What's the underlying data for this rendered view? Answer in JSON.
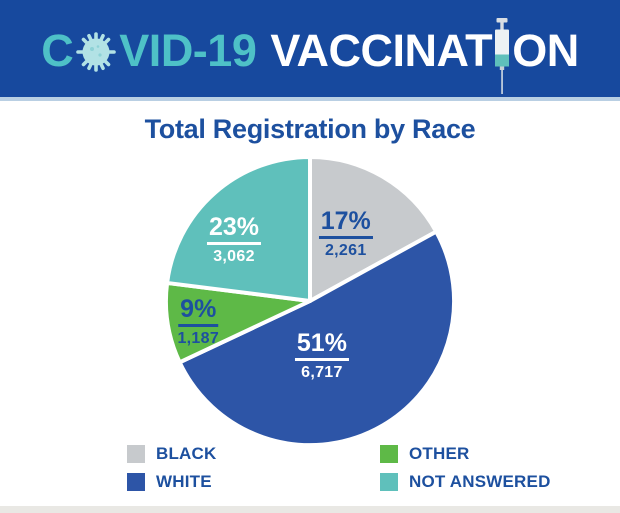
{
  "header": {
    "covid_pre": "C",
    "covid_post": "VID-19",
    "vax_pre": "VACCINAT",
    "vax_post": "ON",
    "banner_bg": "#17499e",
    "banner_strip": "#b9cfe3",
    "covid_text_color": "#4ec1c7",
    "vaccination_text_color": "#ffffff"
  },
  "icons": {
    "covid_o": "virus-icon",
    "vaccination_i": "syringe-icon"
  },
  "main": {
    "title": "Total Registration by Race",
    "title_color": "#1d509f"
  },
  "chart_data": {
    "type": "pie",
    "title": "Total Registration by Race",
    "start_angle_deg": 0,
    "direction": "clockwise",
    "legend_position": "bottom",
    "legend_order": [
      "BLACK",
      "OTHER",
      "WHITE",
      "NOT ANSWERED"
    ],
    "slices": [
      {
        "label": "BLACK",
        "percent": 17,
        "value": "2,261",
        "color": "#c7cacd",
        "text_color": "#1d509f",
        "label_pos": {
          "x": "62%",
          "y": "27.5%"
        }
      },
      {
        "label": "WHITE",
        "percent": 51,
        "value": "6,717",
        "color": "#2d55a7",
        "text_color": "#ffffff",
        "label_pos": {
          "x": "54%",
          "y": "68.5%"
        }
      },
      {
        "label": "OTHER",
        "percent": 9,
        "value": "1,187",
        "color": "#5eb947",
        "text_color": "#1d509f",
        "label_pos": {
          "x": "12.5%",
          "y": "57%"
        }
      },
      {
        "label": "NOT ANSWERED",
        "percent": 23,
        "value": "3,062",
        "color": "#5fc0bb",
        "text_color": "#ffffff",
        "label_pos": {
          "x": "24.5%",
          "y": "29.5%"
        }
      }
    ]
  }
}
